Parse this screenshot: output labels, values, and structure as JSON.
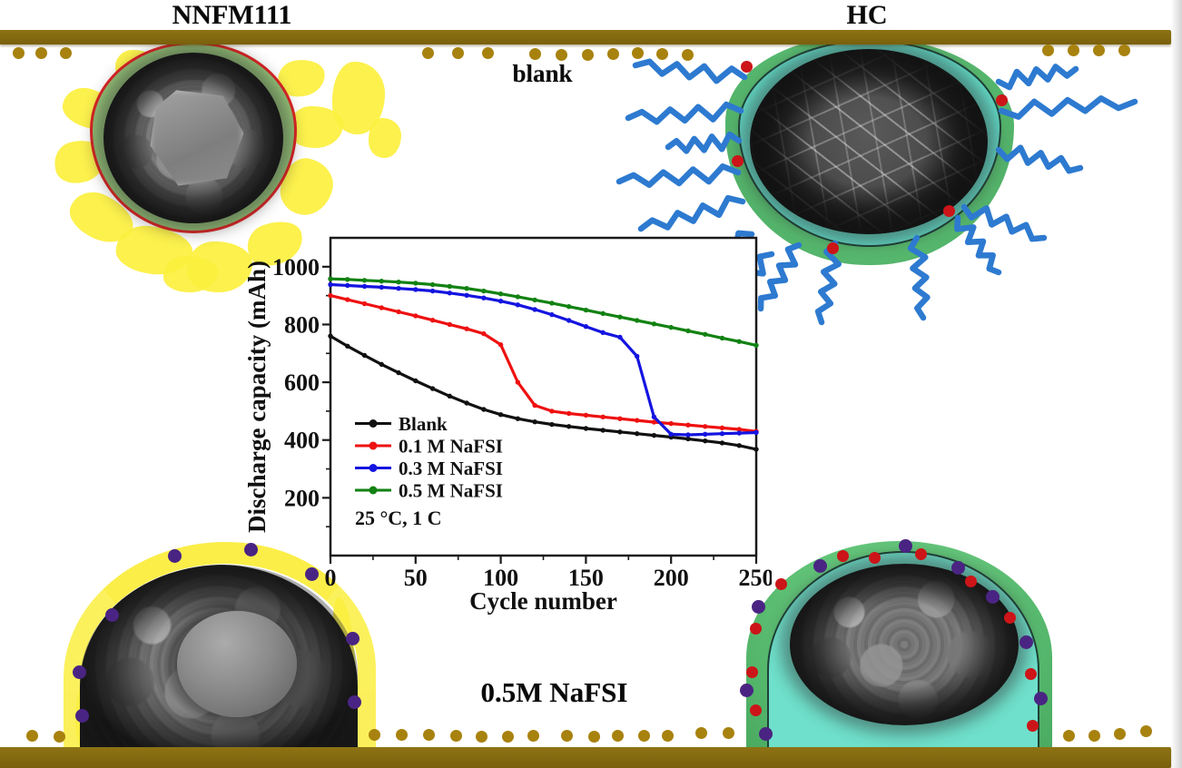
{
  "labels": {
    "top_left": "NNFM111",
    "top_right": "HC",
    "condition_top": "blank",
    "condition_bottom": "0.5M NaFSI"
  },
  "chart_data": {
    "type": "line",
    "title": "",
    "xlabel": "Cycle number",
    "ylabel": "Discharge capacity (mAh)",
    "annotation": "25 °C, 1 C",
    "xlim": [
      0,
      250
    ],
    "ylim": [
      0,
      1100
    ],
    "xticks": [
      0,
      50,
      100,
      150,
      200,
      250
    ],
    "yticks": [
      200,
      400,
      600,
      800,
      1000
    ],
    "x_minor_step": 25,
    "y_minor_step": 100,
    "grid": false,
    "legend_position": "lower left inside",
    "x": [
      0,
      10,
      20,
      30,
      40,
      50,
      60,
      70,
      80,
      90,
      100,
      110,
      120,
      130,
      140,
      150,
      160,
      170,
      180,
      190,
      200,
      210,
      220,
      230,
      240,
      250
    ],
    "series": [
      {
        "name": "Blank",
        "color": "#111111",
        "values": [
          760,
          725,
          693,
          662,
          633,
          605,
          578,
          552,
          528,
          506,
          488,
          474,
          463,
          454,
          447,
          440,
          434,
          428,
          422,
          416,
          410,
          404,
          397,
          390,
          381,
          368
        ]
      },
      {
        "name": "0.1 M NaFSI",
        "color": "#ee1111",
        "values": [
          900,
          886,
          872,
          858,
          844,
          830,
          815,
          800,
          785,
          768,
          730,
          600,
          520,
          500,
          492,
          486,
          480,
          474,
          468,
          462,
          457,
          452,
          447,
          442,
          437,
          430
        ]
      },
      {
        "name": "0.3 M NaFSI",
        "color": "#1414e0",
        "values": [
          938,
          935,
          932,
          929,
          925,
          921,
          916,
          909,
          901,
          892,
          881,
          868,
          852,
          834,
          814,
          793,
          772,
          756,
          690,
          480,
          420,
          418,
          420,
          422,
          424,
          426
        ]
      },
      {
        "name": "0.5 M NaFSI",
        "color": "#128212",
        "values": [
          958,
          956,
          953,
          950,
          947,
          943,
          938,
          932,
          925,
          916,
          906,
          896,
          885,
          874,
          862,
          850,
          838,
          826,
          814,
          802,
          790,
          778,
          766,
          753,
          741,
          728
        ]
      }
    ]
  },
  "colors": {
    "collector_bar": "#83660F",
    "sodium_ion_dot": "#A8820E",
    "nnfm_coating_green": "#99C97B",
    "nnfm_outline_red": "#E32222",
    "hc_coating_cyan": "#64DDC9",
    "sei_layer_green": "#52B268",
    "electrolyte_chain_blue": "#2D7AD0",
    "fsi_dot_red": "#CC1518",
    "fsi_dot_purple": "#4A2483",
    "degradation_yellow": "#FBEE3F",
    "chart_frame": "#1A1A1A"
  }
}
